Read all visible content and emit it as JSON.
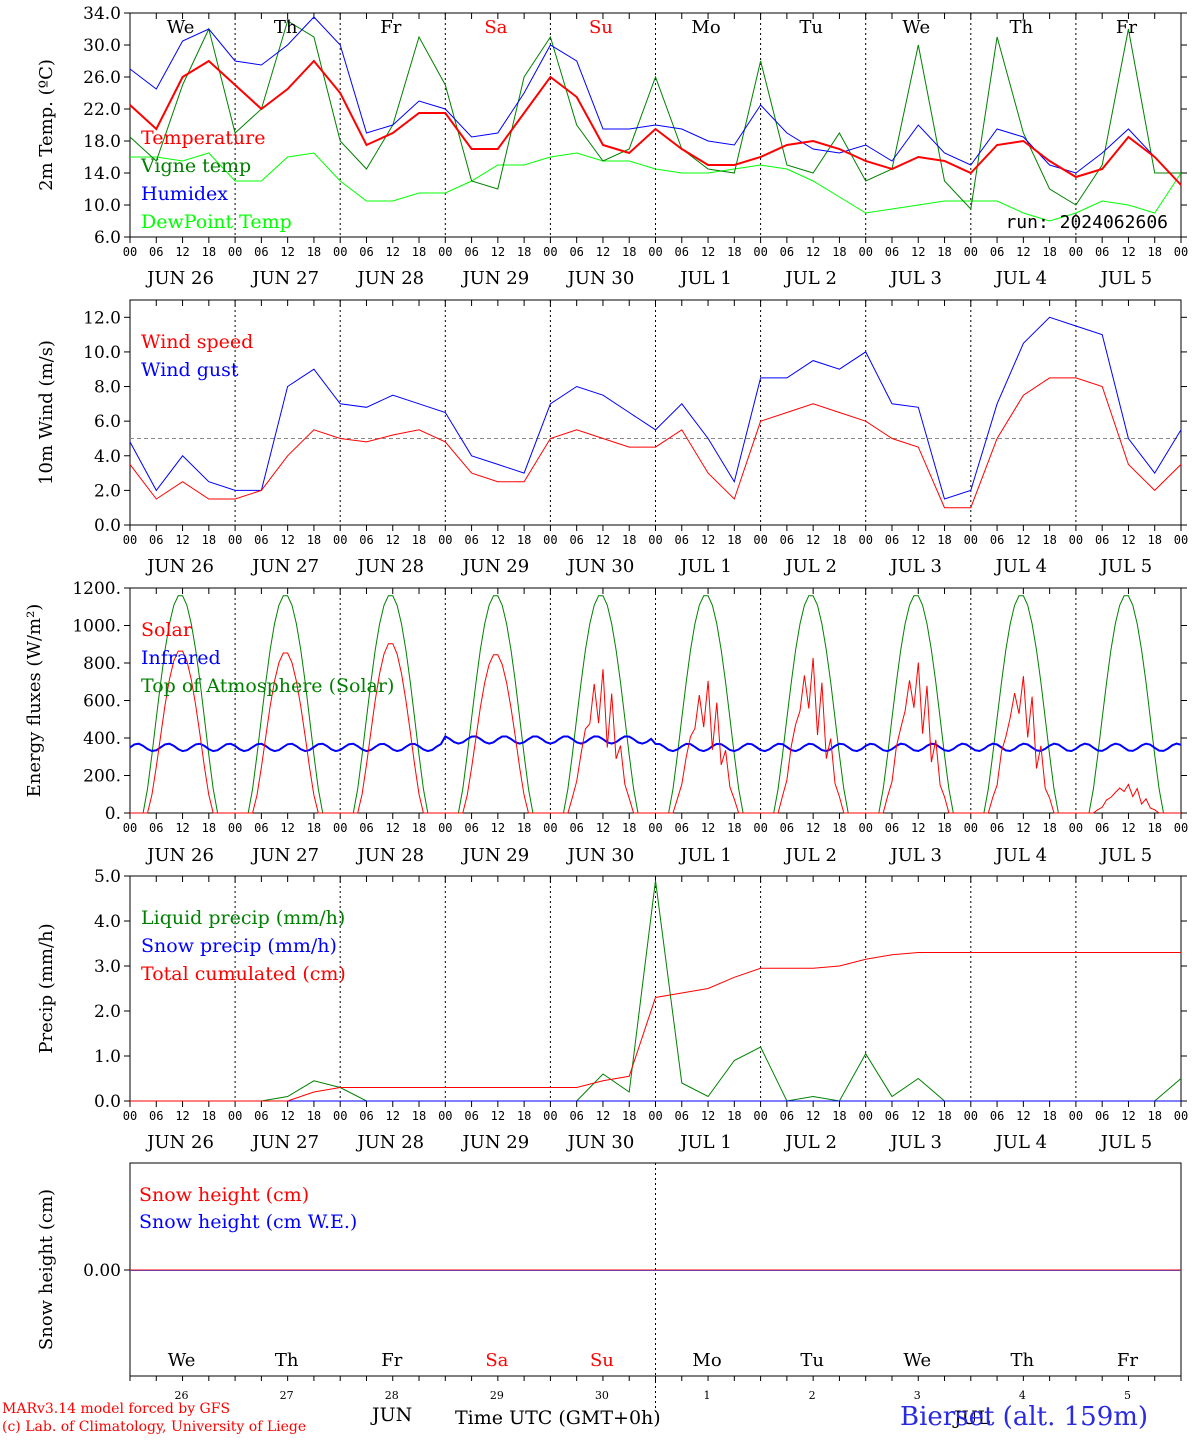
{
  "run_label": "run: 2024062606",
  "hour_ticks": [
    "00",
    "06",
    "12",
    "18"
  ],
  "end_tick": "00",
  "day_labels": [
    "JUN 26",
    "JUN 27",
    "JUN 28",
    "JUN 29",
    "JUN 30",
    "JUL  1",
    "JUL  2",
    "JUL  3",
    "JUL  4",
    "JUL  5"
  ],
  "weekdays": [
    {
      "label": "We",
      "color": "#000000"
    },
    {
      "label": "Th",
      "color": "#000000"
    },
    {
      "label": "Fr",
      "color": "#000000"
    },
    {
      "label": "Sa",
      "color": "#ff0000"
    },
    {
      "label": "Su",
      "color": "#ff0000"
    },
    {
      "label": "Mo",
      "color": "#000000"
    },
    {
      "label": "Tu",
      "color": "#000000"
    },
    {
      "label": "We",
      "color": "#000000"
    },
    {
      "label": "Th",
      "color": "#000000"
    },
    {
      "label": "Fr",
      "color": "#000000"
    }
  ],
  "day_numbers": [
    "26",
    "27",
    "28",
    "29",
    "30",
    "1",
    "2",
    "3",
    "4",
    "5"
  ],
  "footer": {
    "model": "MARv3.14 model forced by GFS",
    "lab": "(c) Lab. of Climatology, University of Liege",
    "month_jun": "JUN",
    "month_jul": "JUL",
    "xlabel": "Time UTC (GMT+0h)",
    "station": "Bierset (alt. 159m)"
  },
  "chart_data": [
    {
      "type": "line",
      "ylabel": "2m Temp. (ºC)",
      "ylim": [
        6,
        34
      ],
      "yticks": [
        "6.0",
        "10.0",
        "14.0",
        "18.0",
        "22.0",
        "26.0",
        "30.0",
        "34.0"
      ],
      "ytick_values": [
        6,
        10,
        14,
        18,
        22,
        26,
        30,
        34
      ],
      "x_hours": [
        0,
        6,
        12,
        18,
        24,
        30,
        36,
        42,
        48,
        54,
        60,
        66,
        72,
        78,
        84,
        90,
        96,
        102,
        108,
        114,
        120,
        126,
        132,
        138,
        144,
        150,
        156,
        162,
        168,
        174,
        180,
        186,
        192,
        198,
        204,
        210,
        216,
        222,
        228,
        234,
        240
      ],
      "series": [
        {
          "name": "Temperature",
          "color": "#ff0000",
          "width": 2,
          "values": [
            22.5,
            19.5,
            26,
            28,
            25,
            22,
            24.5,
            28,
            24,
            17.5,
            19,
            21.5,
            21.5,
            17,
            17,
            21.5,
            26,
            23.5,
            17.5,
            16.5,
            19.5,
            17,
            15,
            15,
            16,
            17.5,
            18,
            17,
            15.5,
            14.5,
            16,
            15.5,
            14,
            17.5,
            18,
            15.5,
            13.5,
            14.5,
            18.5,
            16,
            12.5
          ]
        },
        {
          "name": "Vigne temp",
          "color": "#008000",
          "width": 1,
          "values": [
            18.5,
            15.5,
            25,
            32,
            19,
            22,
            33,
            31,
            18,
            14.5,
            20,
            31,
            25,
            13,
            12,
            26,
            31,
            20,
            15.5,
            17,
            26,
            17,
            14.5,
            14,
            28,
            15,
            14,
            19,
            13,
            14.5,
            30,
            13,
            9.5,
            31,
            19,
            12,
            10,
            15,
            32,
            14,
            14
          ]
        },
        {
          "name": "Humidex",
          "color": "#0000ff",
          "width": 1,
          "values": [
            27,
            24.5,
            30.5,
            32,
            28,
            27.5,
            30,
            33.5,
            30,
            19,
            20,
            23,
            22,
            18.5,
            19,
            24,
            30,
            28,
            19.5,
            19.5,
            20,
            19.5,
            18,
            17.5,
            22.5,
            19,
            17,
            16.5,
            17.5,
            15.5,
            20,
            16.5,
            15,
            19.5,
            18.5,
            15,
            14,
            16.5,
            19.5,
            16,
            12.5
          ]
        },
        {
          "name": "DewPoint Temp",
          "color": "#00ff00",
          "width": 1,
          "values": [
            16,
            16,
            15.5,
            16.5,
            13,
            13,
            16,
            16.5,
            13,
            10.5,
            10.5,
            11.5,
            11.5,
            13,
            15,
            15,
            16,
            16.5,
            15.5,
            15.5,
            14.5,
            14,
            14,
            14.5,
            15,
            14.5,
            13,
            11,
            9,
            9.5,
            10,
            10.5,
            10.5,
            10.5,
            9,
            8,
            9,
            10.5,
            10,
            9,
            14
          ]
        }
      ],
      "legend": "top-left"
    },
    {
      "type": "line",
      "ylabel": "10m Wind (m/s)",
      "ylim": [
        0,
        13
      ],
      "yticks": [
        "0.0",
        "2.0",
        "4.0",
        "6.0",
        "8.0",
        "10.0",
        "12.0"
      ],
      "ytick_values": [
        0,
        2,
        4,
        6,
        8,
        10,
        12
      ],
      "reference_line": 5,
      "x_hours": [
        0,
        6,
        12,
        18,
        24,
        30,
        36,
        42,
        48,
        54,
        60,
        66,
        72,
        78,
        84,
        90,
        96,
        102,
        108,
        114,
        120,
        126,
        132,
        138,
        144,
        150,
        156,
        162,
        168,
        174,
        180,
        186,
        192,
        198,
        204,
        210,
        216,
        222,
        228,
        234,
        240
      ],
      "series": [
        {
          "name": "Wind speed",
          "color": "#ff0000",
          "width": 1,
          "values": [
            3.5,
            1.5,
            2.5,
            1.5,
            1.5,
            2,
            4,
            5.5,
            5,
            4.8,
            5.2,
            5.5,
            4.8,
            3,
            2.5,
            2.5,
            5,
            5.5,
            5,
            4.5,
            4.5,
            5.5,
            3,
            1.5,
            6,
            6.5,
            7,
            6.5,
            6,
            5,
            4.5,
            1,
            1,
            5,
            7.5,
            8.5,
            8.5,
            8,
            3.5,
            2,
            3.5
          ]
        },
        {
          "name": "Wind gust",
          "color": "#0000ff",
          "width": 1,
          "values": [
            4.8,
            2,
            4,
            2.5,
            2,
            2,
            8,
            9,
            7,
            6.8,
            7.5,
            7,
            6.5,
            4,
            3.5,
            3,
            7,
            8,
            7.5,
            6.5,
            5.5,
            7,
            5,
            2.5,
            8.5,
            8.5,
            9.5,
            9,
            10,
            7,
            6.8,
            1.5,
            2,
            7,
            10.5,
            12,
            11.5,
            11,
            5,
            3,
            5.5
          ]
        }
      ],
      "legend": "top-left"
    },
    {
      "type": "line",
      "ylabel": "Energy fluxes (W/m²)",
      "ylim": [
        0,
        1200
      ],
      "yticks": [
        "0.",
        "200.",
        "400.",
        "600.",
        "800.",
        "1000.",
        "1200."
      ],
      "ytick_values": [
        0,
        200,
        400,
        600,
        800,
        1000,
        1200
      ],
      "solar_day_peaks": [
        870,
        860,
        910,
        850,
        780,
        720,
        850,
        830,
        760,
        160
      ],
      "toa_peak": 1165,
      "infrared_level": 350,
      "series": [
        {
          "name": "Solar",
          "color": "#ff0000",
          "width": 1
        },
        {
          "name": "Infrared",
          "color": "#0000ff",
          "width": 2
        },
        {
          "name": "Top of Atmosphere (Solar)",
          "color": "#008000",
          "width": 1
        }
      ],
      "legend": "top-left"
    },
    {
      "type": "line",
      "ylabel": "Precip (mm/h)",
      "ylim": [
        0,
        5
      ],
      "yticks": [
        "0.0",
        "1.0",
        "2.0",
        "3.0",
        "4.0",
        "5.0"
      ],
      "ytick_values": [
        0,
        1,
        2,
        3,
        4,
        5
      ],
      "x_hours": [
        0,
        6,
        12,
        18,
        24,
        30,
        36,
        42,
        48,
        54,
        60,
        66,
        72,
        78,
        84,
        90,
        96,
        102,
        108,
        114,
        120,
        126,
        132,
        138,
        144,
        150,
        156,
        162,
        168,
        174,
        180,
        186,
        192,
        198,
        204,
        210,
        216,
        222,
        228,
        234,
        240
      ],
      "series": [
        {
          "name": "Liquid precip (mm/h)",
          "color": "#008000",
          "width": 1,
          "values": [
            0,
            0,
            0,
            0,
            0,
            0,
            0.1,
            0.45,
            0.3,
            0,
            0,
            0,
            0,
            0,
            0,
            0,
            0,
            0,
            0.6,
            0.2,
            4.9,
            0.4,
            0.1,
            0.9,
            1.2,
            0,
            0.1,
            0,
            1.05,
            0.1,
            0.5,
            0,
            0,
            0,
            0,
            0,
            0,
            0,
            0,
            0,
            0.5
          ]
        },
        {
          "name": "Snow precip (mm/h)",
          "color": "#0000ff",
          "width": 1,
          "values": [
            0,
            0,
            0,
            0,
            0,
            0,
            0,
            0,
            0,
            0,
            0,
            0,
            0,
            0,
            0,
            0,
            0,
            0,
            0,
            0,
            0,
            0,
            0,
            0,
            0,
            0,
            0,
            0,
            0,
            0,
            0,
            0,
            0,
            0,
            0,
            0,
            0,
            0,
            0,
            0,
            0
          ]
        },
        {
          "name": "Total cumulated (cm)",
          "color": "#ff0000",
          "width": 1,
          "values": [
            0,
            0,
            0,
            0,
            0,
            0,
            0,
            0.2,
            0.3,
            0.3,
            0.3,
            0.3,
            0.3,
            0.3,
            0.3,
            0.3,
            0.3,
            0.3,
            0.45,
            0.55,
            2.3,
            2.4,
            2.5,
            2.75,
            2.95,
            2.95,
            2.95,
            3.0,
            3.15,
            3.25,
            3.3,
            3.3,
            3.3,
            3.3,
            3.3,
            3.3,
            3.3,
            3.3,
            3.3,
            3.3,
            3.3
          ]
        }
      ],
      "legend": "top-left"
    },
    {
      "type": "line",
      "ylabel": "Snow height (cm)",
      "yticks": [
        "0.00"
      ],
      "series": [
        {
          "name": "Snow height (cm)",
          "color": "#ff0000",
          "width": 1,
          "values": [
            0,
            0
          ]
        },
        {
          "name": "Snow height (cm W.E.)",
          "color": "#0000ff",
          "width": 1,
          "values": [
            0,
            0
          ]
        }
      ],
      "legend": "top-left"
    }
  ]
}
